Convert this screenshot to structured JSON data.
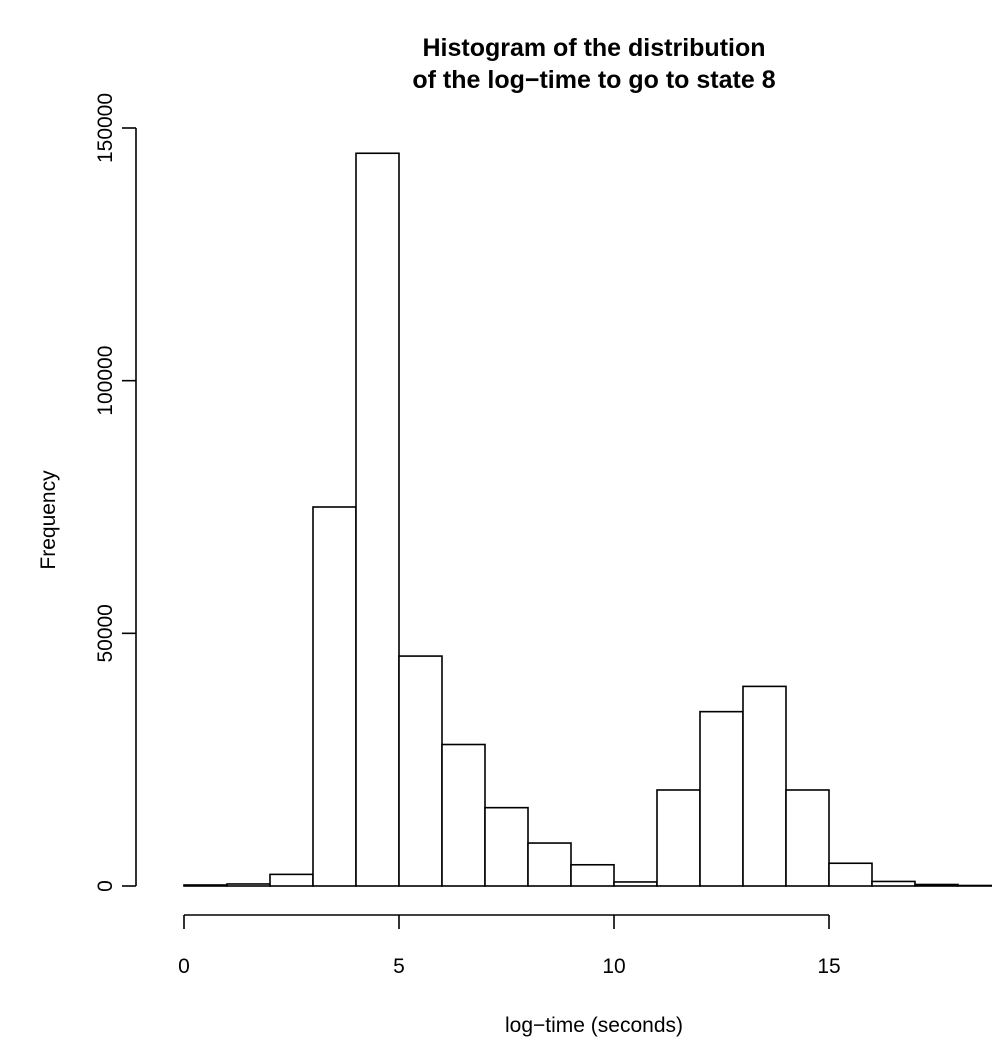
{
  "chart_data": {
    "type": "bar",
    "title_lines": [
      "Histogram of the distribution",
      "of the log−time to go to state 8"
    ],
    "xlabel": "log−time (seconds)",
    "ylabel": "Frequency",
    "xlim": [
      0,
      19
    ],
    "ylim": [
      0,
      150000
    ],
    "x_ticks": [
      0,
      5,
      10,
      15
    ],
    "y_ticks": [
      0,
      50000,
      100000,
      150000
    ],
    "bin_edges": [
      0,
      1,
      2,
      3,
      4,
      5,
      6,
      7,
      8,
      9,
      10,
      11,
      12,
      13,
      14,
      15,
      16,
      17,
      18,
      19
    ],
    "values": [
      200,
      400,
      2300,
      75000,
      145000,
      45500,
      28000,
      15500,
      8500,
      4200,
      800,
      19000,
      34500,
      39500,
      19000,
      4500,
      900,
      300,
      100
    ],
    "bar_fill": "#ffffff",
    "bar_stroke": "#000000"
  }
}
